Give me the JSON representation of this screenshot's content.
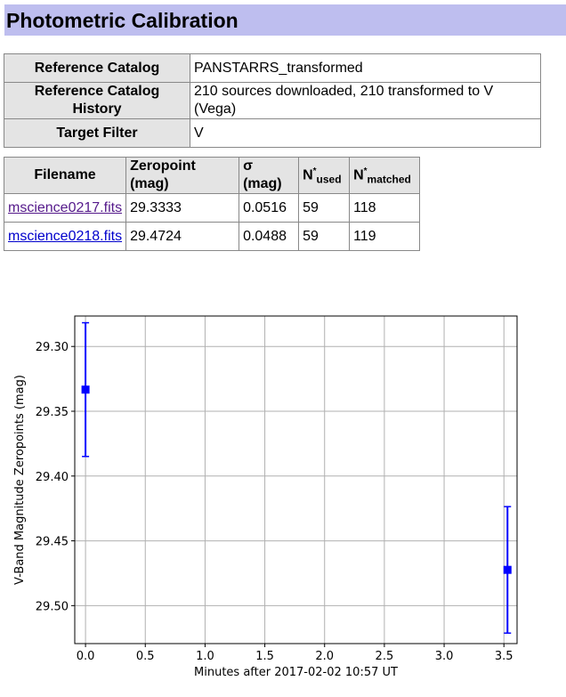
{
  "page": {
    "title": "Photometric Calibration"
  },
  "reference": {
    "rows": [
      {
        "label": "Reference Catalog",
        "value": "PANSTARRS_transformed"
      },
      {
        "label": "Reference Catalog History",
        "value": "210 sources downloaded, 210 transformed to V (Vega)"
      },
      {
        "label": "Target Filter",
        "value": "V"
      }
    ]
  },
  "files": {
    "headers": {
      "filename": "Filename",
      "zeropoint": "Zeropoint (mag)",
      "sigma": "σ (mag)",
      "n_used_base": "N",
      "n_used_sup": "*",
      "n_used_sub": "used",
      "n_matched_base": "N",
      "n_matched_sup": "*",
      "n_matched_sub": "matched"
    },
    "rows": [
      {
        "filename": "mscience0217.fits",
        "zeropoint": "29.3333",
        "sigma": "0.0516",
        "n_used": "59",
        "n_matched": "118"
      },
      {
        "filename": "mscience0218.fits",
        "zeropoint": "29.4724",
        "sigma": "0.0488",
        "n_used": "59",
        "n_matched": "119"
      }
    ]
  },
  "chart_data": {
    "type": "scatter",
    "xlabel": "Minutes after 2017-02-02 10:57 UT",
    "ylabel": "V-Band Magnitude Zeropoints (mag)",
    "x_ticks": [
      "0.0",
      "0.5",
      "1.0",
      "1.5",
      "2.0",
      "2.5",
      "3.0",
      "3.5"
    ],
    "y_ticks": [
      "29.30",
      "29.35",
      "29.40",
      "29.45",
      "29.50"
    ],
    "xlim": [
      -0.09,
      3.61
    ],
    "ylim": [
      29.5293,
      29.2765
    ],
    "y_inverted": true,
    "grid": true,
    "marker_color": "#0000ff",
    "points": [
      {
        "x": 0.0,
        "y": 29.3333,
        "yerr": 0.0516
      },
      {
        "x": 3.53,
        "y": 29.4724,
        "yerr": 0.0488
      }
    ]
  }
}
